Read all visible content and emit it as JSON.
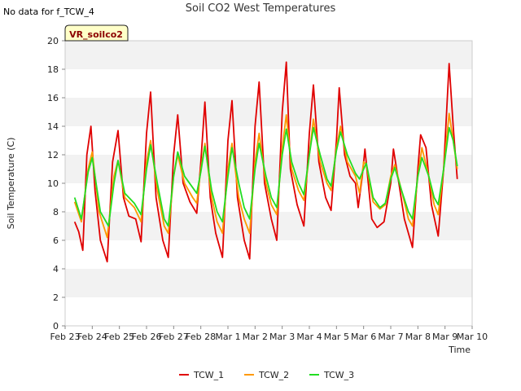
{
  "header": {
    "nodata": "No data for f_TCW_4",
    "title": "Soil CO2 West Temperatures"
  },
  "badge": "VR_soilco2",
  "colors": {
    "TCW_1": "#e00000",
    "TCW_2": "#ff9900",
    "TCW_3": "#22dd22"
  },
  "chart_data": {
    "type": "line",
    "title": "Soil CO2 West Temperatures",
    "xlabel": "Time",
    "ylabel": "Soil Temperature (C)",
    "ylim": [
      0,
      20
    ],
    "yticks": [
      0,
      2,
      4,
      6,
      8,
      10,
      12,
      14,
      16,
      18,
      20
    ],
    "xticks": [
      "Feb 23",
      "Feb 24",
      "Feb 25",
      "Feb 26",
      "Feb 27",
      "Feb 28",
      "Mar 1",
      "Mar 2",
      "Mar 3",
      "Mar 4",
      "Mar 5",
      "Mar 6",
      "Mar 7",
      "Mar 8",
      "Mar 9",
      "Mar 10"
    ],
    "grid": "horizontal bands",
    "legend_position": "bottom",
    "x_unit": "days from Feb 23",
    "series": [
      {
        "name": "TCW_1",
        "color": "#e00000",
        "points": [
          [
            0.35,
            7.3
          ],
          [
            0.5,
            6.6
          ],
          [
            0.65,
            5.3
          ],
          [
            0.8,
            12.0
          ],
          [
            0.95,
            14.0
          ],
          [
            1.1,
            9.5
          ],
          [
            1.3,
            6.0
          ],
          [
            1.55,
            4.5
          ],
          [
            1.75,
            11.5
          ],
          [
            1.95,
            13.7
          ],
          [
            2.15,
            9.0
          ],
          [
            2.35,
            7.7
          ],
          [
            2.6,
            7.5
          ],
          [
            2.8,
            5.9
          ],
          [
            3.0,
            13.5
          ],
          [
            3.15,
            16.4
          ],
          [
            3.35,
            9.0
          ],
          [
            3.6,
            6.0
          ],
          [
            3.8,
            4.8
          ],
          [
            4.0,
            12.0
          ],
          [
            4.15,
            14.8
          ],
          [
            4.35,
            10.0
          ],
          [
            4.6,
            8.7
          ],
          [
            4.85,
            7.9
          ],
          [
            5.0,
            11.5
          ],
          [
            5.15,
            15.7
          ],
          [
            5.35,
            9.0
          ],
          [
            5.55,
            6.5
          ],
          [
            5.8,
            4.8
          ],
          [
            6.0,
            13.0
          ],
          [
            6.15,
            15.8
          ],
          [
            6.35,
            9.0
          ],
          [
            6.6,
            6.0
          ],
          [
            6.8,
            4.7
          ],
          [
            7.0,
            14.0
          ],
          [
            7.15,
            17.1
          ],
          [
            7.35,
            10.0
          ],
          [
            7.6,
            7.5
          ],
          [
            7.8,
            6.0
          ],
          [
            8.0,
            15.0
          ],
          [
            8.15,
            18.5
          ],
          [
            8.3,
            11.0
          ],
          [
            8.55,
            8.5
          ],
          [
            8.8,
            7.0
          ],
          [
            9.0,
            13.5
          ],
          [
            9.15,
            16.9
          ],
          [
            9.35,
            11.5
          ],
          [
            9.6,
            9.0
          ],
          [
            9.8,
            8.1
          ],
          [
            10.0,
            13.0
          ],
          [
            10.1,
            16.7
          ],
          [
            10.3,
            12.0
          ],
          [
            10.5,
            10.5
          ],
          [
            10.7,
            10.0
          ],
          [
            10.8,
            8.3
          ],
          [
            10.95,
            10.5
          ],
          [
            11.05,
            12.4
          ],
          [
            11.3,
            7.5
          ],
          [
            11.5,
            6.9
          ],
          [
            11.75,
            7.3
          ],
          [
            12.0,
            10.0
          ],
          [
            12.1,
            12.4
          ],
          [
            12.3,
            10.0
          ],
          [
            12.5,
            7.5
          ],
          [
            12.8,
            5.5
          ],
          [
            13.0,
            11.0
          ],
          [
            13.1,
            13.4
          ],
          [
            13.3,
            12.5
          ],
          [
            13.5,
            8.5
          ],
          [
            13.75,
            6.3
          ],
          [
            13.95,
            11.0
          ],
          [
            14.15,
            18.4
          ],
          [
            14.3,
            14.0
          ],
          [
            14.45,
            10.3
          ]
        ]
      },
      {
        "name": "TCW_2",
        "color": "#ff9900",
        "points": [
          [
            0.35,
            8.7
          ],
          [
            0.6,
            7.3
          ],
          [
            0.85,
            11.0
          ],
          [
            1.0,
            12.2
          ],
          [
            1.25,
            8.0
          ],
          [
            1.55,
            6.2
          ],
          [
            1.8,
            10.5
          ],
          [
            1.95,
            11.6
          ],
          [
            2.2,
            9.0
          ],
          [
            2.55,
            8.3
          ],
          [
            2.8,
            7.3
          ],
          [
            3.0,
            11.5
          ],
          [
            3.15,
            13.0
          ],
          [
            3.4,
            9.5
          ],
          [
            3.65,
            7.0
          ],
          [
            3.8,
            6.5
          ],
          [
            4.0,
            10.5
          ],
          [
            4.15,
            12.0
          ],
          [
            4.4,
            10.0
          ],
          [
            4.7,
            9.0
          ],
          [
            4.85,
            8.6
          ],
          [
            5.0,
            11.0
          ],
          [
            5.15,
            12.8
          ],
          [
            5.4,
            9.0
          ],
          [
            5.6,
            7.3
          ],
          [
            5.8,
            6.5
          ],
          [
            6.0,
            11.0
          ],
          [
            6.15,
            12.8
          ],
          [
            6.4,
            9.0
          ],
          [
            6.6,
            7.5
          ],
          [
            6.8,
            6.5
          ],
          [
            7.0,
            11.5
          ],
          [
            7.15,
            13.5
          ],
          [
            7.4,
            10.0
          ],
          [
            7.6,
            8.5
          ],
          [
            7.8,
            7.8
          ],
          [
            8.0,
            12.5
          ],
          [
            8.15,
            14.8
          ],
          [
            8.35,
            11.0
          ],
          [
            8.6,
            9.5
          ],
          [
            8.8,
            8.8
          ],
          [
            9.0,
            12.0
          ],
          [
            9.15,
            14.5
          ],
          [
            9.4,
            11.5
          ],
          [
            9.65,
            10.0
          ],
          [
            9.8,
            9.5
          ],
          [
            10.0,
            12.5
          ],
          [
            10.15,
            14.0
          ],
          [
            10.4,
            11.5
          ],
          [
            10.7,
            10.5
          ],
          [
            10.85,
            9.3
          ],
          [
            11.0,
            11.5
          ],
          [
            11.1,
            11.3
          ],
          [
            11.35,
            8.7
          ],
          [
            11.6,
            8.2
          ],
          [
            11.8,
            8.5
          ],
          [
            12.0,
            10.5
          ],
          [
            12.15,
            11.3
          ],
          [
            12.4,
            9.5
          ],
          [
            12.65,
            7.5
          ],
          [
            12.8,
            7.0
          ],
          [
            13.0,
            10.5
          ],
          [
            13.15,
            12.5
          ],
          [
            13.4,
            10.5
          ],
          [
            13.6,
            8.5
          ],
          [
            13.75,
            7.8
          ],
          [
            13.95,
            11.0
          ],
          [
            14.15,
            14.9
          ],
          [
            14.3,
            13.0
          ],
          [
            14.45,
            11.0
          ]
        ]
      },
      {
        "name": "TCW_3",
        "color": "#22dd22",
        "points": [
          [
            0.35,
            9.0
          ],
          [
            0.6,
            7.5
          ],
          [
            0.85,
            10.8
          ],
          [
            1.0,
            11.8
          ],
          [
            1.3,
            8.0
          ],
          [
            1.6,
            7.0
          ],
          [
            1.8,
            10.0
          ],
          [
            1.95,
            11.6
          ],
          [
            2.2,
            9.3
          ],
          [
            2.55,
            8.6
          ],
          [
            2.8,
            7.8
          ],
          [
            3.0,
            11.0
          ],
          [
            3.15,
            12.7
          ],
          [
            3.4,
            10.0
          ],
          [
            3.65,
            7.5
          ],
          [
            3.8,
            7.0
          ],
          [
            4.0,
            10.5
          ],
          [
            4.15,
            12.2
          ],
          [
            4.4,
            10.5
          ],
          [
            4.7,
            9.7
          ],
          [
            4.85,
            9.3
          ],
          [
            5.0,
            10.8
          ],
          [
            5.15,
            12.6
          ],
          [
            5.4,
            9.5
          ],
          [
            5.6,
            8.0
          ],
          [
            5.8,
            7.3
          ],
          [
            6.0,
            10.5
          ],
          [
            6.15,
            12.5
          ],
          [
            6.4,
            10.0
          ],
          [
            6.6,
            8.3
          ],
          [
            6.8,
            7.5
          ],
          [
            7.0,
            11.0
          ],
          [
            7.15,
            12.8
          ],
          [
            7.4,
            10.5
          ],
          [
            7.6,
            9.0
          ],
          [
            7.8,
            8.3
          ],
          [
            8.0,
            12.0
          ],
          [
            8.15,
            13.8
          ],
          [
            8.35,
            11.5
          ],
          [
            8.6,
            10.0
          ],
          [
            8.8,
            9.2
          ],
          [
            9.0,
            12.0
          ],
          [
            9.15,
            13.9
          ],
          [
            9.4,
            12.0
          ],
          [
            9.65,
            10.3
          ],
          [
            9.8,
            9.8
          ],
          [
            10.0,
            12.3
          ],
          [
            10.15,
            13.6
          ],
          [
            10.4,
            12.0
          ],
          [
            10.7,
            10.7
          ],
          [
            10.85,
            10.3
          ],
          [
            11.0,
            11.0
          ],
          [
            11.1,
            11.4
          ],
          [
            11.35,
            9.0
          ],
          [
            11.6,
            8.3
          ],
          [
            11.8,
            8.6
          ],
          [
            12.0,
            10.3
          ],
          [
            12.15,
            11.1
          ],
          [
            12.4,
            9.5
          ],
          [
            12.65,
            8.0
          ],
          [
            12.8,
            7.5
          ],
          [
            13.0,
            10.5
          ],
          [
            13.15,
            11.8
          ],
          [
            13.4,
            10.5
          ],
          [
            13.6,
            9.0
          ],
          [
            13.75,
            8.5
          ],
          [
            13.95,
            11.0
          ],
          [
            14.15,
            13.9
          ],
          [
            14.3,
            13.0
          ],
          [
            14.45,
            11.2
          ]
        ]
      }
    ]
  }
}
